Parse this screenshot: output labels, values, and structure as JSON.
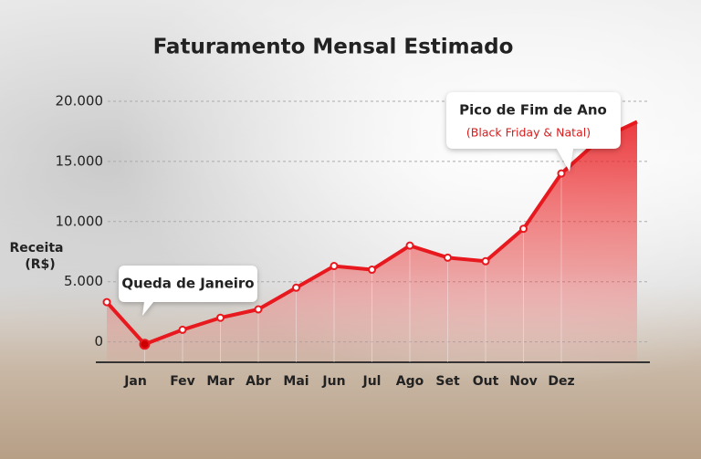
{
  "chart_data": {
    "type": "line",
    "title": "Faturamento Mensal Estimado",
    "ylabel": [
      "Receita",
      "(R$)"
    ],
    "categories": [
      null,
      "Jan",
      "Fev",
      "Mar",
      "Abr",
      "Mai",
      "Jun",
      "Jul",
      "Ago",
      "Set",
      "Out",
      "Nov",
      "Dez",
      null,
      null
    ],
    "series": [
      {
        "name": "Receita",
        "color": "#e8191e",
        "values": [
          3300,
          -200,
          1000,
          2000,
          2700,
          4500,
          6300,
          6000,
          8000,
          7000,
          6700,
          9400,
          14000,
          16800,
          18300
        ]
      }
    ],
    "ylim": [
      -1700,
      20000
    ],
    "yticks": [
      0,
      {
        "value": 5000,
        "label": "5.000"
      },
      {
        "value": 10000,
        "label": "10.000"
      },
      {
        "value": 15000,
        "label": "15.000"
      },
      {
        "value": 20000,
        "label": "20.000"
      }
    ],
    "grid": true,
    "annotations": [
      {
        "text": "Queda de Janeiro"
      },
      {
        "text": "Pico de Fim de Ano",
        "subtext": "(Black Friday & Natal)"
      }
    ]
  }
}
